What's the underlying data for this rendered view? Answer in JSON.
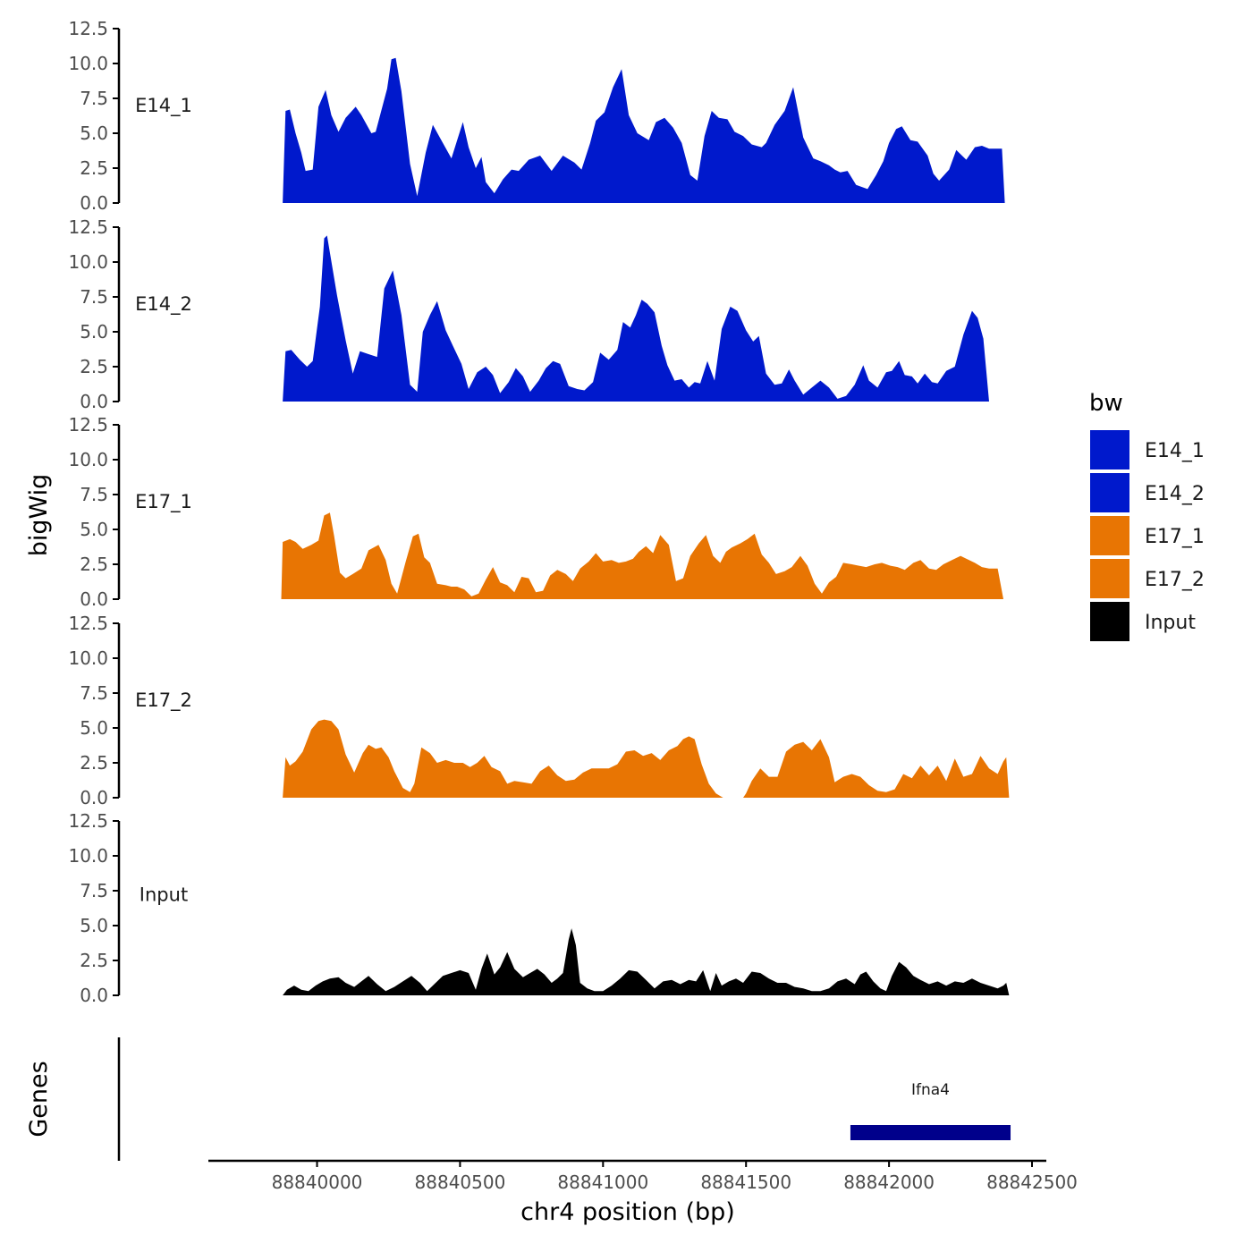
{
  "chart_data": {
    "type": "area",
    "x_title": "chr4 position (bp)",
    "y_title": "bigWig",
    "genes_title": "Genes",
    "xlim": [
      88839620,
      88842550
    ],
    "x_ticks": [
      88840000,
      88840500,
      88841000,
      88841500,
      88842000,
      88842500
    ],
    "x_tick_labels": [
      "88840000",
      "88840500",
      "88841000",
      "88841500",
      "88842000",
      "88842500"
    ],
    "ylim": [
      0,
      12.5
    ],
    "y_ticks": [
      0,
      2.5,
      5,
      7.5,
      10,
      12.5
    ],
    "y_tick_labels": [
      "0.0",
      "2.5",
      "5.0",
      "7.5",
      "10.0",
      "12.5"
    ],
    "legend": {
      "title": "bw",
      "placement": "right",
      "entries": [
        {
          "label": "E14_1",
          "color": "#0019CC"
        },
        {
          "label": "E14_2",
          "color": "#0019CC"
        },
        {
          "label": "E17_1",
          "color": "#E87503"
        },
        {
          "label": "E17_2",
          "color": "#E87503"
        },
        {
          "label": "Input",
          "color": "#000000"
        }
      ]
    },
    "series": [
      {
        "name": "E14_1",
        "color": "#0019CC",
        "x": [
          88839880,
          88839890,
          88839905,
          88839925,
          88839945,
          88839960,
          88839985,
          88840005,
          88840030,
          88840050,
          88840075,
          88840100,
          88840135,
          88840155,
          88840190,
          88840205,
          88840245,
          88840260,
          88840275,
          88840295,
          88840325,
          88840350,
          88840380,
          88840405,
          88840440,
          88840470,
          88840490,
          88840510,
          88840530,
          88840555,
          88840575,
          88840590,
          88840620,
          88840650,
          88840680,
          88840705,
          88840740,
          88840780,
          88840820,
          88840860,
          88840900,
          88840925,
          88840955,
          88840975,
          88841005,
          88841035,
          88841065,
          88841090,
          88841120,
          88841160,
          88841185,
          88841215,
          88841245,
          88841275,
          88841305,
          88841330,
          88841355,
          88841380,
          88841405,
          88841435,
          88841460,
          88841490,
          88841520,
          88841555,
          88841570,
          88841600,
          88841635,
          88841665,
          88841700,
          88841735,
          88841760,
          88841790,
          88841810,
          88841830,
          88841855,
          88841885,
          88841925,
          88841955,
          88841980,
          88842000,
          88842025,
          88842045,
          88842075,
          88842100,
          88842135,
          88842155,
          88842175,
          88842210,
          88842235,
          88842270,
          88842300,
          88842325,
          88842350,
          88842370,
          88842395,
          88842405
        ],
        "y": [
          0.0,
          6.6,
          6.7,
          5.0,
          3.6,
          2.3,
          2.4,
          6.9,
          8.1,
          6.3,
          5.1,
          6.1,
          6.9,
          6.3,
          5.0,
          5.1,
          8.2,
          10.3,
          10.4,
          8.0,
          2.8,
          0.5,
          3.6,
          5.6,
          4.3,
          3.2,
          4.5,
          5.8,
          4.0,
          2.5,
          3.3,
          1.5,
          0.7,
          1.7,
          2.4,
          2.3,
          3.1,
          3.4,
          2.3,
          3.4,
          2.9,
          2.4,
          4.3,
          5.9,
          6.5,
          8.3,
          9.6,
          6.3,
          5.0,
          4.5,
          5.8,
          6.1,
          5.4,
          4.3,
          2.0,
          1.6,
          4.8,
          6.6,
          6.1,
          6.0,
          5.1,
          4.8,
          4.2,
          4.0,
          4.3,
          5.6,
          6.6,
          8.3,
          4.7,
          3.2,
          3.0,
          2.7,
          2.4,
          2.2,
          2.3,
          1.3,
          1.0,
          2.0,
          3.0,
          4.3,
          5.3,
          5.5,
          4.5,
          4.4,
          3.4,
          2.1,
          1.6,
          2.4,
          3.8,
          3.1,
          4.0,
          4.1,
          3.9,
          3.9,
          3.9,
          0.0
        ]
      },
      {
        "name": "E14_2",
        "color": "#0019CC",
        "x": [
          88839880,
          88839890,
          88839910,
          88839940,
          88839965,
          88839985,
          88840010,
          88840025,
          88840035,
          88840070,
          88840100,
          88840125,
          88840150,
          88840180,
          88840210,
          88840235,
          88840265,
          88840295,
          88840325,
          88840350,
          88840370,
          88840395,
          88840420,
          88840450,
          88840475,
          88840505,
          88840530,
          88840560,
          88840590,
          88840615,
          88840640,
          88840670,
          88840695,
          88840720,
          88840745,
          88840775,
          88840800,
          88840825,
          88840850,
          88840880,
          88840910,
          88840935,
          88840965,
          88840990,
          88841020,
          88841050,
          88841070,
          88841095,
          88841115,
          88841135,
          88841155,
          88841180,
          88841205,
          88841225,
          88841250,
          88841275,
          88841300,
          88841320,
          88841340,
          88841365,
          88841390,
          88841415,
          88841445,
          88841470,
          88841500,
          88841525,
          88841545,
          88841570,
          88841600,
          88841625,
          88841650,
          88841670,
          88841700,
          88841730,
          88841760,
          88841790,
          88841820,
          88841850,
          88841880,
          88841910,
          88841930,
          88841960,
          88841990,
          88842010,
          88842035,
          88842055,
          88842080,
          88842100,
          88842125,
          88842150,
          88842170,
          88842200,
          88842230,
          88842260,
          88842290,
          88842310,
          88842330,
          88842350,
          88842370,
          88842395,
          88842415,
          88842425
        ],
        "y": [
          0.0,
          3.6,
          3.7,
          3.0,
          2.5,
          2.9,
          6.8,
          11.7,
          11.9,
          7.6,
          4.4,
          2.0,
          3.6,
          3.4,
          3.2,
          8.1,
          9.4,
          6.2,
          1.2,
          0.7,
          5.0,
          6.2,
          7.2,
          5.1,
          4.0,
          2.7,
          0.9,
          2.1,
          2.5,
          1.9,
          0.6,
          1.4,
          2.4,
          1.8,
          0.7,
          1.5,
          2.4,
          2.9,
          2.7,
          1.1,
          0.9,
          0.8,
          1.4,
          3.5,
          3.0,
          3.7,
          5.7,
          5.3,
          6.2,
          7.3,
          7.0,
          6.4,
          4.0,
          2.6,
          1.5,
          1.6,
          1.0,
          1.4,
          1.3,
          2.9,
          1.5,
          5.2,
          6.8,
          6.5,
          5.1,
          4.3,
          4.7,
          2.0,
          1.2,
          1.3,
          2.3,
          1.5,
          0.5,
          1.0,
          1.5,
          1.0,
          0.2,
          0.4,
          1.2,
          2.6,
          1.5,
          1.0,
          2.1,
          2.2,
          2.9,
          1.9,
          1.8,
          1.3,
          2.0,
          1.4,
          1.3,
          2.2,
          2.5,
          4.8,
          6.5,
          6.0,
          4.5,
          0.0,
          0.0,
          0.0,
          0.0,
          0.0
        ]
      },
      {
        "name": "E17_1",
        "color": "#E87503",
        "x": [
          88839875,
          88839880,
          88839905,
          88839925,
          88839950,
          88839980,
          88840005,
          88840025,
          88840045,
          88840060,
          88840080,
          88840100,
          88840125,
          88840155,
          88840180,
          88840215,
          88840240,
          88840260,
          88840280,
          88840310,
          88840335,
          88840355,
          88840375,
          88840395,
          88840420,
          88840450,
          88840470,
          88840490,
          88840515,
          88840540,
          88840565,
          88840590,
          88840615,
          88840640,
          88840665,
          88840690,
          88840715,
          88840740,
          88840765,
          88840790,
          88840815,
          88840840,
          88840870,
          88840895,
          88840920,
          88840950,
          88840975,
          88841000,
          88841030,
          88841055,
          88841080,
          88841105,
          88841125,
          88841150,
          88841175,
          88841200,
          88841230,
          88841255,
          88841280,
          88841305,
          88841335,
          88841360,
          88841385,
          88841410,
          88841430,
          88841450,
          88841480,
          88841505,
          88841530,
          88841555,
          88841580,
          88841605,
          88841635,
          88841660,
          88841690,
          88841715,
          88841740,
          88841765,
          88841790,
          88841815,
          88841840,
          88841870,
          88841895,
          88841920,
          88841950,
          88841975,
          88842005,
          88842030,
          88842055,
          88842085,
          88842110,
          88842140,
          88842165,
          88842190,
          88842220,
          88842250,
          88842270,
          88842300,
          88842325,
          88842350,
          88842380,
          88842400,
          88842405
        ],
        "y": [
          0.0,
          4.1,
          4.3,
          4.1,
          3.6,
          3.9,
          4.2,
          6.0,
          6.2,
          4.5,
          1.9,
          1.5,
          1.8,
          2.2,
          3.5,
          3.9,
          2.8,
          1.1,
          0.4,
          2.7,
          4.5,
          4.7,
          3.0,
          2.6,
          1.1,
          1.0,
          0.9,
          0.9,
          0.7,
          0.2,
          0.4,
          1.4,
          2.3,
          1.2,
          1.0,
          0.5,
          1.6,
          1.5,
          0.5,
          0.6,
          1.7,
          2.1,
          1.8,
          1.3,
          2.2,
          2.7,
          3.3,
          2.7,
          2.8,
          2.6,
          2.7,
          2.9,
          3.4,
          3.8,
          3.3,
          4.6,
          3.9,
          1.3,
          1.5,
          3.1,
          4.0,
          4.6,
          3.1,
          2.6,
          3.4,
          3.7,
          4.0,
          4.3,
          4.7,
          3.2,
          2.6,
          1.8,
          2.0,
          2.3,
          3.1,
          2.4,
          1.1,
          0.4,
          1.2,
          1.6,
          2.6,
          2.5,
          2.4,
          2.3,
          2.5,
          2.6,
          2.4,
          2.3,
          2.1,
          2.6,
          2.8,
          2.2,
          2.1,
          2.5,
          2.8,
          3.1,
          2.9,
          2.6,
          2.3,
          2.2,
          2.2,
          0.0,
          0.0
        ]
      },
      {
        "name": "E17_2",
        "color": "#E87503",
        "x": [
          88839880,
          88839890,
          88839905,
          88839925,
          88839950,
          88839980,
          88840005,
          88840025,
          88840050,
          88840075,
          88840100,
          88840130,
          88840160,
          88840180,
          88840205,
          88840225,
          88840250,
          88840270,
          88840300,
          88840325,
          88840340,
          88840365,
          88840395,
          88840420,
          88840450,
          88840480,
          88840510,
          88840535,
          88840560,
          88840585,
          88840610,
          88840640,
          88840665,
          88840690,
          88840720,
          88840750,
          88840780,
          88840810,
          88840840,
          88840870,
          88840900,
          88840930,
          88840960,
          88840990,
          88841020,
          88841050,
          88841080,
          88841110,
          88841140,
          88841170,
          88841200,
          88841230,
          88841260,
          88841280,
          88841300,
          88841320,
          88841345,
          88841370,
          88841395,
          88841420,
          88841445,
          88841470,
          88841490,
          88841500,
          88841520,
          88841550,
          88841580,
          88841610,
          88841640,
          88841670,
          88841700,
          88841730,
          88841760,
          88841790,
          88841810,
          88841840,
          88841870,
          88841900,
          88841930,
          88841960,
          88841990,
          88842020,
          88842050,
          88842080,
          88842110,
          88842140,
          88842170,
          88842200,
          88842230,
          88842260,
          88842290,
          88842320,
          88842350,
          88842380,
          88842400,
          88842410,
          88842420
        ],
        "y": [
          0.0,
          2.9,
          2.3,
          2.6,
          3.3,
          4.9,
          5.5,
          5.6,
          5.5,
          4.9,
          3.1,
          1.8,
          3.2,
          3.8,
          3.5,
          3.6,
          2.9,
          1.9,
          0.7,
          0.4,
          1.0,
          3.6,
          3.2,
          2.5,
          2.7,
          2.5,
          2.5,
          2.2,
          2.5,
          3.0,
          2.2,
          1.9,
          1.0,
          1.2,
          1.1,
          1.0,
          1.9,
          2.3,
          1.6,
          1.2,
          1.3,
          1.8,
          2.1,
          2.1,
          2.1,
          2.4,
          3.3,
          3.4,
          3.0,
          3.2,
          2.7,
          3.4,
          3.7,
          4.2,
          4.4,
          4.2,
          2.4,
          1.0,
          0.3,
          0.0,
          0.0,
          0.0,
          0.0,
          0.3,
          1.2,
          2.1,
          1.5,
          1.5,
          3.3,
          3.8,
          4.0,
          3.4,
          4.2,
          2.9,
          1.1,
          1.5,
          1.7,
          1.5,
          0.9,
          0.5,
          0.4,
          0.6,
          1.7,
          1.4,
          2.3,
          1.6,
          2.3,
          1.2,
          2.8,
          1.5,
          1.7,
          3.0,
          2.1,
          1.7,
          2.6,
          2.9,
          0.0
        ]
      },
      {
        "name": "Input",
        "color": "#000000",
        "x": [
          88839880,
          88839895,
          88839920,
          88839945,
          88839970,
          88839995,
          88840020,
          88840045,
          88840075,
          88840100,
          88840130,
          88840155,
          88840180,
          88840210,
          88840240,
          88840270,
          88840300,
          88840330,
          88840360,
          88840385,
          88840410,
          88840440,
          88840470,
          88840500,
          88840530,
          88840555,
          88840575,
          88840595,
          88840620,
          88840640,
          88840665,
          88840690,
          88840720,
          88840745,
          88840770,
          88840795,
          88840820,
          88840840,
          88840860,
          88840880,
          88840890,
          88840905,
          88840920,
          88840945,
          88840970,
          88841000,
          88841030,
          88841060,
          88841090,
          88841120,
          88841150,
          88841180,
          88841210,
          88841240,
          88841270,
          88841300,
          88841325,
          88841350,
          88841375,
          88841395,
          88841415,
          88841440,
          88841465,
          88841490,
          88841520,
          88841550,
          88841580,
          88841610,
          88841640,
          88841670,
          88841700,
          88841730,
          88841760,
          88841790,
          88841820,
          88841850,
          88841880,
          88841900,
          88841920,
          88841945,
          88841970,
          88841990,
          88842010,
          88842035,
          88842060,
          88842085,
          88842110,
          88842140,
          88842170,
          88842200,
          88842230,
          88842260,
          88842290,
          88842320,
          88842350,
          88842380,
          88842400,
          88842410,
          88842420
        ],
        "y": [
          0.0,
          0.4,
          0.7,
          0.4,
          0.3,
          0.7,
          1.0,
          1.2,
          1.3,
          0.9,
          0.6,
          1.0,
          1.4,
          0.8,
          0.3,
          0.6,
          1.0,
          1.4,
          0.9,
          0.3,
          0.8,
          1.4,
          1.6,
          1.8,
          1.6,
          0.4,
          1.9,
          3.0,
          1.5,
          2.0,
          3.1,
          1.9,
          1.3,
          1.6,
          1.9,
          1.5,
          0.9,
          1.2,
          1.6,
          4.0,
          4.8,
          3.6,
          0.9,
          0.5,
          0.3,
          0.3,
          0.7,
          1.2,
          1.8,
          1.7,
          1.1,
          0.5,
          1.0,
          1.1,
          0.8,
          1.1,
          1.0,
          1.8,
          0.3,
          1.6,
          0.7,
          1.0,
          1.2,
          0.9,
          1.7,
          1.6,
          1.2,
          0.9,
          0.9,
          0.6,
          0.5,
          0.3,
          0.3,
          0.5,
          1.0,
          1.2,
          0.8,
          1.5,
          1.7,
          1.0,
          0.5,
          0.3,
          1.4,
          2.4,
          2.0,
          1.4,
          1.1,
          0.8,
          1.0,
          0.7,
          1.0,
          0.9,
          1.2,
          0.9,
          0.7,
          0.5,
          0.7,
          0.9,
          0.0
        ]
      }
    ],
    "genes": [
      {
        "name": "Ifna4",
        "start": 88841865,
        "end": 88842425,
        "color": "#00008B"
      }
    ]
  }
}
